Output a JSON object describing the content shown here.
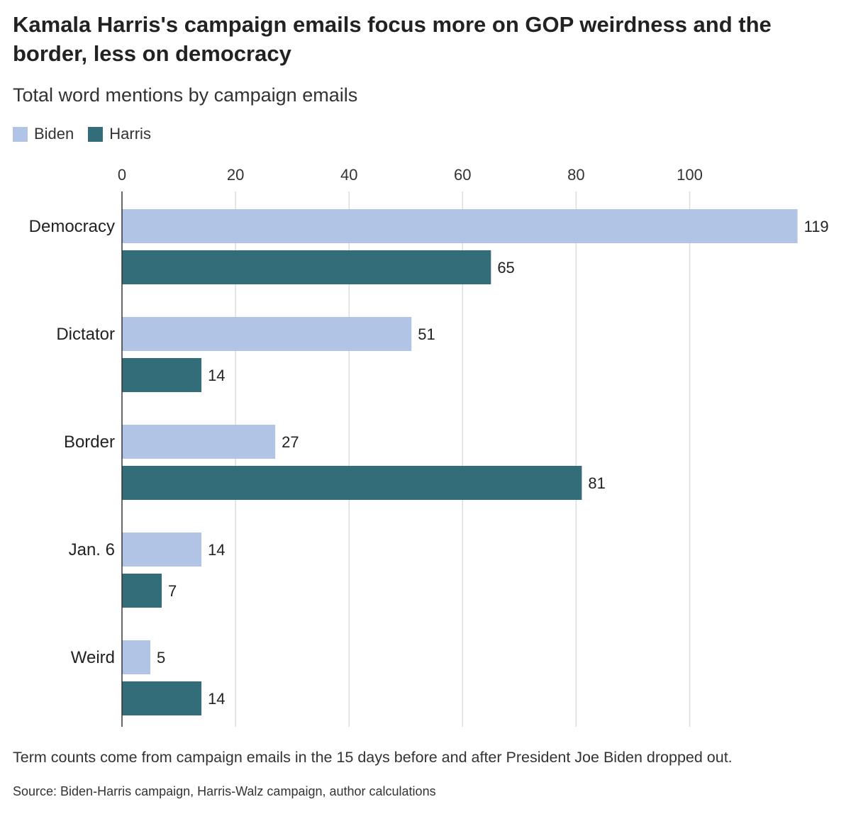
{
  "chart_data": {
    "type": "bar",
    "orientation": "horizontal",
    "title": "Kamala Harris's campaign emails focus more on GOP weirdness and the border, less on democracy",
    "subtitle": "Total word mentions by campaign emails",
    "categories": [
      "Democracy",
      "Dictator",
      "Border",
      "Jan. 6",
      "Weird"
    ],
    "series": [
      {
        "name": "Biden",
        "color": "#b1c4e6",
        "values": [
          119,
          51,
          27,
          14,
          5
        ]
      },
      {
        "name": "Harris",
        "color": "#336d7a",
        "values": [
          65,
          14,
          81,
          7,
          14
        ]
      }
    ],
    "xlim": [
      0,
      119
    ],
    "xticks": [
      0,
      20,
      40,
      60,
      80,
      100
    ],
    "xtick_labels": [
      "0",
      "20",
      "40",
      "60",
      "80",
      "100"
    ],
    "xlabel": "",
    "ylabel": "",
    "grid": true,
    "legend_position": "top-left",
    "data_labels": true,
    "note": "Term counts come from campaign emails in the 15 days before and after President Joe Biden dropped out.",
    "source": "Source: Biden-Harris campaign, Harris-Walz campaign, author calculations"
  }
}
